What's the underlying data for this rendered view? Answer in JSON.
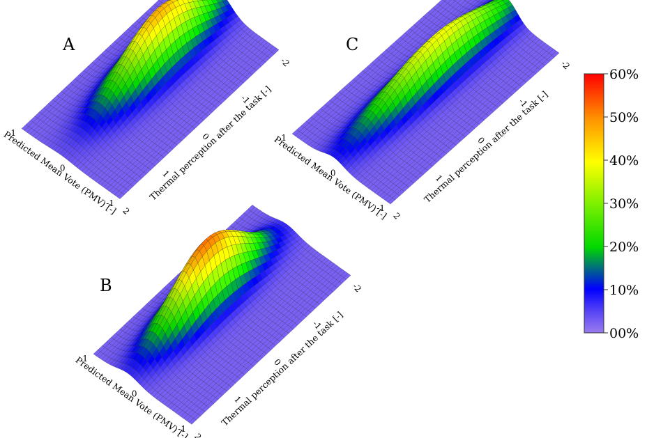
{
  "chart_data": {
    "type": "surface3d",
    "panels": [
      {
        "label": "A",
        "xlabel": "Predicted Mean Vote (PMV) [-]",
        "ylabel": "Thermal perception after the task [-]",
        "x_ticks": [
          "1",
          "0",
          "-1"
        ],
        "y_ticks": [
          "2",
          "1",
          "0",
          "-1",
          "-2"
        ],
        "xlim": [
          -1,
          1
        ],
        "ylim": [
          -2,
          2
        ],
        "peak": {
          "x": 0.2,
          "y": -0.5,
          "value_percent": 45
        }
      },
      {
        "label": "B",
        "xlabel": "Predicted Mean Vote (PMV) [-]",
        "ylabel": "Thermal perception after the task [-]",
        "x_ticks": [
          "1",
          "0",
          "-1"
        ],
        "y_ticks": [
          "2",
          "1",
          "0",
          "-1",
          "-2"
        ],
        "xlim": [
          -1,
          1
        ],
        "ylim": [
          -2,
          2
        ],
        "peak": {
          "x": 0.3,
          "y": 0.0,
          "value_percent": 50
        }
      },
      {
        "label": "C",
        "xlabel": "Predicted Mean Vote (PMV) [-]",
        "ylabel": "Thermal perception after the task [-]",
        "x_ticks": [
          "1",
          "0",
          "-1"
        ],
        "y_ticks": [
          "2",
          "1",
          "0",
          "-1",
          "-2"
        ],
        "xlim": [
          -1,
          1
        ],
        "ylim": [
          -2,
          2
        ],
        "peak": {
          "x": 0.1,
          "y": -0.4,
          "value_percent": 37
        }
      }
    ],
    "colorbar": {
      "ticks": [
        "60%",
        "50%",
        "40%",
        "30%",
        "20%",
        "10%",
        "00%"
      ],
      "range": [
        0,
        60
      ],
      "colors": [
        "#9a7cf0",
        "#0000ff",
        "#00ff00",
        "#ffff00",
        "#ff7f00",
        "#ff0000"
      ]
    }
  }
}
